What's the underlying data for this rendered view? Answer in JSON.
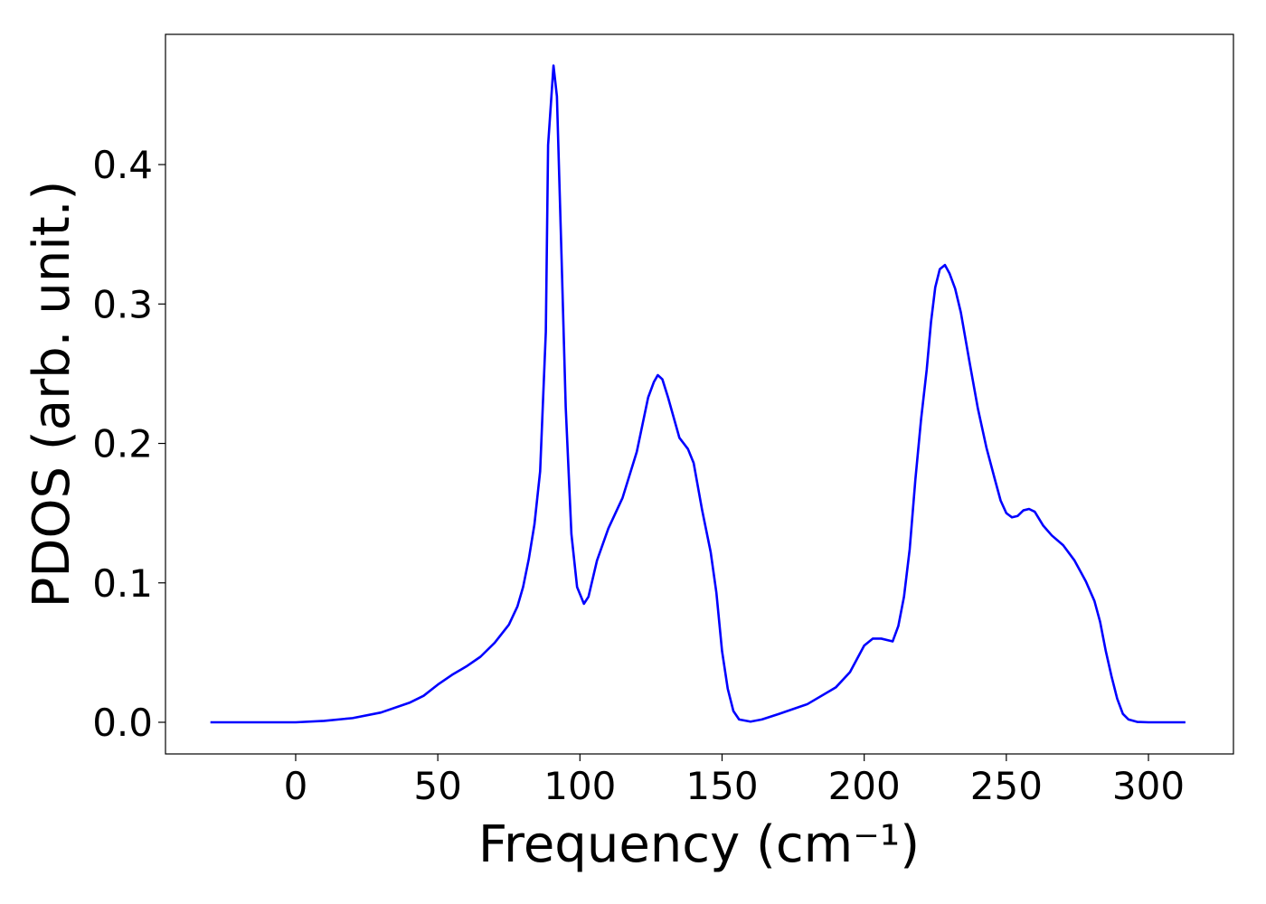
{
  "chart_data": {
    "type": "line",
    "xlabel": "Frequency (cm⁻¹)",
    "ylabel": "PDOS (arb. unit.)",
    "x": [
      -30,
      0,
      10,
      20,
      30,
      40,
      45,
      50,
      55,
      60,
      65,
      70,
      75,
      78,
      80,
      82,
      84,
      86,
      88,
      88.8,
      90.7,
      91.9,
      93.5,
      95,
      97,
      99,
      101.4,
      103,
      106,
      110,
      115,
      120,
      124,
      126,
      127.4,
      129,
      131,
      135,
      138,
      140,
      143,
      146,
      148,
      150,
      152,
      154,
      156,
      160,
      164,
      170,
      180,
      190,
      195,
      200,
      203,
      206,
      210,
      212,
      214,
      216,
      218,
      220,
      222,
      223.5,
      225,
      226.6,
      228.4,
      230,
      232,
      234,
      237,
      240,
      243,
      246,
      248,
      250,
      252,
      254,
      256,
      258,
      260,
      263,
      266,
      270,
      274,
      278,
      281,
      283,
      285,
      287,
      289,
      291,
      293,
      296,
      300,
      313
    ],
    "series": [
      {
        "name": "PDOS",
        "color": "#0000ff",
        "values": [
          0,
          0,
          0.001,
          0.003,
          0.007,
          0.014,
          0.019,
          0.027,
          0.034,
          0.04,
          0.047,
          0.057,
          0.07,
          0.083,
          0.097,
          0.117,
          0.142,
          0.18,
          0.28,
          0.414,
          0.471,
          0.449,
          0.336,
          0.226,
          0.135,
          0.097,
          0.085,
          0.09,
          0.116,
          0.139,
          0.161,
          0.194,
          0.233,
          0.244,
          0.249,
          0.246,
          0.233,
          0.204,
          0.196,
          0.186,
          0.152,
          0.122,
          0.093,
          0.051,
          0.024,
          0.008,
          0.002,
          0.0005,
          0.002,
          0.006,
          0.013,
          0.025,
          0.036,
          0.055,
          0.06,
          0.06,
          0.058,
          0.069,
          0.09,
          0.124,
          0.174,
          0.217,
          0.253,
          0.287,
          0.312,
          0.325,
          0.328,
          0.322,
          0.311,
          0.294,
          0.259,
          0.225,
          0.197,
          0.174,
          0.159,
          0.15,
          0.147,
          0.148,
          0.152,
          0.153,
          0.151,
          0.141,
          0.134,
          0.127,
          0.116,
          0.101,
          0.087,
          0.072,
          0.051,
          0.033,
          0.017,
          0.006,
          0.002,
          0.0003,
          0,
          0
        ]
      }
    ],
    "xlim": [
      -45.8,
      329.9
    ],
    "ylim": [
      -0.0227,
      0.4934
    ],
    "xticks": [
      0,
      50,
      100,
      150,
      200,
      250,
      300
    ],
    "yticks": [
      {
        "value": 0,
        "label": "0.0"
      },
      0.1,
      0.2,
      0.3,
      0.4
    ]
  }
}
